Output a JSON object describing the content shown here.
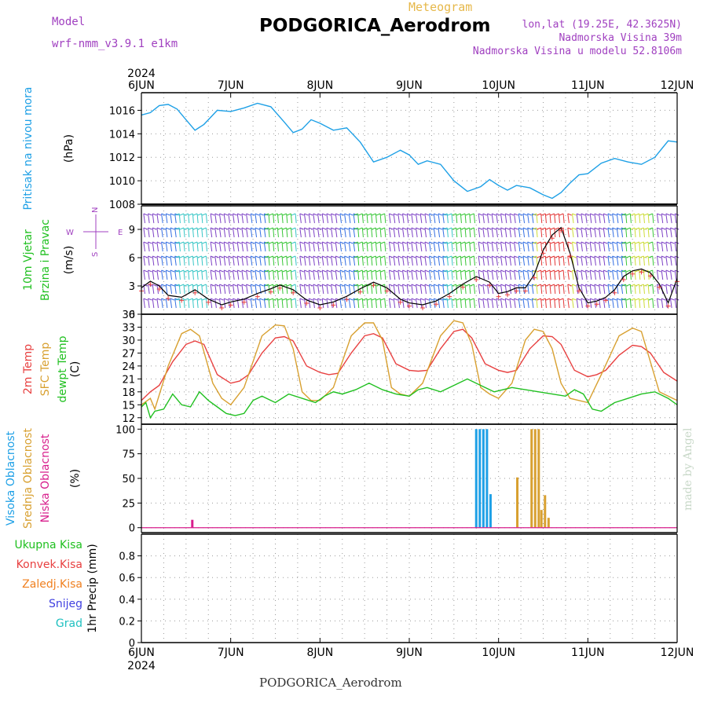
{
  "header": {
    "station": "PODGORICA_Aerodrom",
    "meteogram": "Meteogram",
    "model_label": "Model",
    "model_value": "wrf-nmm_v3.9.1  e1km",
    "lonlat": "lon,lat (19.25E, 42.3625N)",
    "elevation": "Nadmorska Visina 39m",
    "model_elevation": "Nadmorska Visina u modelu 52.8106m",
    "footer": "PODGORICA_Aerodrom",
    "made_by": "made by Angel"
  },
  "colors": {
    "pressure": "#1ea0e6",
    "temp2m": "#e84040",
    "sfc_temp": "#d8a030",
    "dewpoint": "#20c020",
    "high_cloud": "#1ea0e6",
    "mid_cloud": "#d8a030",
    "low_cloud": "#d81e8c",
    "precip_total": "#20c020",
    "precip_conv": "#e84040",
    "precip_frozen": "#f08020",
    "precip_snow": "#4040e0",
    "precip_graupel": "#20c0c0",
    "wind_compass": "#a040c0"
  },
  "chart_data": {
    "type": "line",
    "time": {
      "year_top": "2024",
      "year_bottom": "2024",
      "day_labels": [
        "6JUN",
        "7JUN",
        "8JUN",
        "9JUN",
        "10JUN",
        "11JUN",
        "12JUN"
      ],
      "x_range_days": [
        0,
        6
      ]
    },
    "panels": [
      {
        "id": "pressure",
        "ylabel": [
          "Pritisak na nivou mora",
          "(hPa)"
        ],
        "ylim": [
          1008,
          1017.5
        ],
        "yticks": [
          1008,
          1010,
          1012,
          1014,
          1016
        ],
        "grid": true,
        "series": [
          {
            "x": [
              0,
              0.1,
              0.2,
              0.3,
              0.4,
              0.5,
              0.6,
              0.7,
              0.85,
              1.0,
              1.15,
              1.3,
              1.45,
              1.6,
              1.7,
              1.8,
              1.9,
              2.0,
              2.15,
              2.3,
              2.45,
              2.6,
              2.75,
              2.9,
              3.0,
              3.1,
              3.2,
              3.35,
              3.5,
              3.65,
              3.8,
              3.9,
              4.0,
              4.1,
              4.2,
              4.35,
              4.5,
              4.6,
              4.7,
              4.8,
              4.9,
              5.0,
              5.15,
              5.3,
              5.45,
              5.6,
              5.75,
              5.9,
              6.0
            ],
            "y": [
              1015.6,
              1015.8,
              1016.4,
              1016.5,
              1016.1,
              1015.2,
              1014.3,
              1014.8,
              1016.0,
              1015.9,
              1016.2,
              1016.6,
              1016.3,
              1015.0,
              1014.1,
              1014.4,
              1015.2,
              1014.9,
              1014.3,
              1014.5,
              1013.3,
              1011.6,
              1012.0,
              1012.6,
              1012.2,
              1011.4,
              1011.7,
              1011.4,
              1010.0,
              1009.1,
              1009.5,
              1010.1,
              1009.6,
              1009.2,
              1009.6,
              1009.4,
              1008.8,
              1008.5,
              1009.0,
              1009.8,
              1010.5,
              1010.6,
              1011.5,
              1011.9,
              1011.6,
              1011.4,
              1012.0,
              1013.4,
              1013.3
            ]
          }
        ]
      },
      {
        "id": "wind",
        "ylabel": [
          "10m Vjetar",
          "Brzina i Pravac",
          "(m/s)"
        ],
        "compass": {
          "n": "N",
          "s": "S",
          "w": "W",
          "e": "E"
        },
        "ylim": [
          0,
          11.5
        ],
        "yticks": [
          0,
          3,
          6,
          9
        ],
        "grid": true,
        "series": [
          {
            "name": "speed",
            "x": [
              0,
              0.1,
              0.2,
              0.3,
              0.45,
              0.6,
              0.75,
              0.9,
              1.0,
              1.15,
              1.3,
              1.45,
              1.55,
              1.7,
              1.85,
              2.0,
              2.15,
              2.3,
              2.45,
              2.6,
              2.75,
              2.9,
              3.0,
              3.15,
              3.3,
              3.45,
              3.6,
              3.75,
              3.9,
              4.0,
              4.1,
              4.2,
              4.3,
              4.4,
              4.5,
              4.6,
              4.7,
              4.8,
              4.9,
              5.0,
              5.1,
              5.2,
              5.3,
              5.4,
              5.5,
              5.6,
              5.7,
              5.8,
              5.9,
              6.0
            ],
            "y": [
              2.8,
              3.5,
              3.0,
              2.0,
              1.8,
              2.6,
              1.6,
              1.0,
              1.3,
              1.6,
              2.2,
              2.7,
              3.1,
              2.6,
              1.5,
              1.0,
              1.3,
              1.9,
              2.7,
              3.4,
              2.8,
              1.6,
              1.2,
              1.0,
              1.4,
              2.2,
              3.2,
              4.0,
              3.4,
              2.2,
              2.4,
              2.8,
              2.8,
              4.2,
              6.8,
              8.4,
              9.2,
              6.5,
              2.8,
              1.2,
              1.4,
              1.8,
              2.6,
              4.0,
              4.6,
              4.8,
              4.4,
              3.2,
              1.2,
              3.8
            ]
          }
        ]
      },
      {
        "id": "temperature",
        "ylabel": [
          "2m Temp",
          "SFC Temp",
          "dewpt Temp",
          "(C)"
        ],
        "ylim": [
          10.5,
          36
        ],
        "yticks": [
          12,
          15,
          18,
          21,
          24,
          27,
          30,
          33,
          36
        ],
        "grid": true,
        "series": [
          {
            "name": "2m Temp",
            "x": [
              0,
              0.1,
              0.2,
              0.35,
              0.5,
              0.6,
              0.7,
              0.85,
              1.0,
              1.1,
              1.2,
              1.35,
              1.5,
              1.6,
              1.7,
              1.85,
              2.0,
              2.1,
              2.2,
              2.35,
              2.5,
              2.6,
              2.7,
              2.85,
              3.0,
              3.1,
              3.2,
              3.35,
              3.5,
              3.6,
              3.7,
              3.85,
              4.0,
              4.1,
              4.2,
              4.35,
              4.5,
              4.6,
              4.7,
              4.85,
              5.0,
              5.1,
              5.2,
              5.35,
              5.5,
              5.6,
              5.7,
              5.85,
              6.0
            ],
            "y": [
              16.0,
              18.0,
              19.5,
              25.0,
              29.0,
              29.8,
              29.0,
              22.0,
              20.0,
              20.5,
              22.0,
              27.0,
              30.5,
              30.8,
              29.8,
              24.0,
              22.5,
              22.0,
              22.3,
              27.0,
              31.0,
              31.5,
              30.5,
              24.5,
              23.0,
              22.8,
              23.0,
              28.0,
              32.0,
              32.5,
              30.5,
              24.5,
              23.0,
              22.5,
              23.0,
              28.0,
              31.0,
              30.8,
              29.0,
              23.0,
              21.5,
              22.0,
              23.0,
              26.5,
              28.8,
              28.5,
              27.0,
              22.5,
              20.5
            ]
          },
          {
            "name": "SFC Temp",
            "x": [
              0,
              0.1,
              0.15,
              0.3,
              0.45,
              0.55,
              0.65,
              0.8,
              0.9,
              1.0,
              1.15,
              1.35,
              1.5,
              1.6,
              1.7,
              1.8,
              1.9,
              2.0,
              2.15,
              2.35,
              2.5,
              2.6,
              2.7,
              2.8,
              2.9,
              3.0,
              3.15,
              3.35,
              3.5,
              3.6,
              3.7,
              3.8,
              3.9,
              4.0,
              4.15,
              4.3,
              4.4,
              4.5,
              4.6,
              4.7,
              4.8,
              4.9,
              5.0,
              5.15,
              5.35,
              5.5,
              5.6,
              5.7,
              5.8,
              5.9,
              6.0
            ],
            "y": [
              15.0,
              16.5,
              14.0,
              24.0,
              31.5,
              32.5,
              31.0,
              20.0,
              16.5,
              15.0,
              19.0,
              31.0,
              33.5,
              33.3,
              28.0,
              18.0,
              16.0,
              16.0,
              19.0,
              31.0,
              34.0,
              34.0,
              30.0,
              19.0,
              17.5,
              17.0,
              20.0,
              31.0,
              34.5,
              34.0,
              29.0,
              19.0,
              17.5,
              16.5,
              20.0,
              30.0,
              32.5,
              32.0,
              28.0,
              20.0,
              16.5,
              16.0,
              15.5,
              22.0,
              31.0,
              32.8,
              32.0,
              25.0,
              18.0,
              17.0,
              16.0
            ]
          },
          {
            "name": "dewpt Temp",
            "x": [
              0,
              0.05,
              0.1,
              0.15,
              0.25,
              0.35,
              0.45,
              0.55,
              0.65,
              0.75,
              0.85,
              0.95,
              1.05,
              1.15,
              1.25,
              1.35,
              1.5,
              1.65,
              1.8,
              1.95,
              2.05,
              2.15,
              2.25,
              2.4,
              2.55,
              2.7,
              2.85,
              3.0,
              3.1,
              3.2,
              3.35,
              3.5,
              3.65,
              3.8,
              3.95,
              4.05,
              4.15,
              4.3,
              4.45,
              4.6,
              4.75,
              4.85,
              4.95,
              5.05,
              5.15,
              5.3,
              5.45,
              5.6,
              5.75,
              5.9,
              6.0
            ],
            "y": [
              14.5,
              15.5,
              12.0,
              13.5,
              14.0,
              17.5,
              15.0,
              14.5,
              18.0,
              16.0,
              14.5,
              13.0,
              12.5,
              13.0,
              16.0,
              17.0,
              15.5,
              17.5,
              16.5,
              15.5,
              17.0,
              18.0,
              17.5,
              18.5,
              20.0,
              18.5,
              17.5,
              17.0,
              18.5,
              19.0,
              18.0,
              19.5,
              21.0,
              19.5,
              18.0,
              18.5,
              19.0,
              18.5,
              18.0,
              17.5,
              17.0,
              18.5,
              17.5,
              14.0,
              13.5,
              15.5,
              16.5,
              17.5,
              18.0,
              16.5,
              15.0
            ]
          }
        ]
      },
      {
        "id": "cloud",
        "ylabel": [
          "Visoka Oblacnost",
          "Srednja Oblacnost",
          "Niska Oblacnost",
          "(%)"
        ],
        "ylim": [
          -5,
          105
        ],
        "yticks": [
          0,
          25,
          50,
          75,
          100
        ],
        "grid": true,
        "series": [
          {
            "name": "Visoka Oblacnost",
            "x": [
              3.75,
              3.79,
              3.83,
              3.87,
              3.91
            ],
            "y": [
              100,
              100,
              100,
              100,
              34
            ]
          },
          {
            "name": "Srednja Oblacnost",
            "x": [
              4.21,
              4.37,
              4.41,
              4.45,
              4.48,
              4.52,
              4.56
            ],
            "y": [
              51,
              100,
              100,
              100,
              18,
              33,
              10
            ]
          },
          {
            "name": "Niska Oblacnost",
            "x": [
              0.57
            ],
            "y": [
              8
            ]
          }
        ]
      },
      {
        "id": "precip",
        "ylabel": [
          "1hr Precip (mm)"
        ],
        "legend": [
          "Ukupna Kisa",
          "Konvek.Kisa",
          "Zaledj.Kisa",
          "Snijeg",
          "Grad"
        ],
        "ylim": [
          0,
          1.0
        ],
        "yticks": [
          0,
          0.2,
          0.4,
          0.6,
          0.8
        ],
        "grid": true,
        "series": []
      }
    ]
  }
}
